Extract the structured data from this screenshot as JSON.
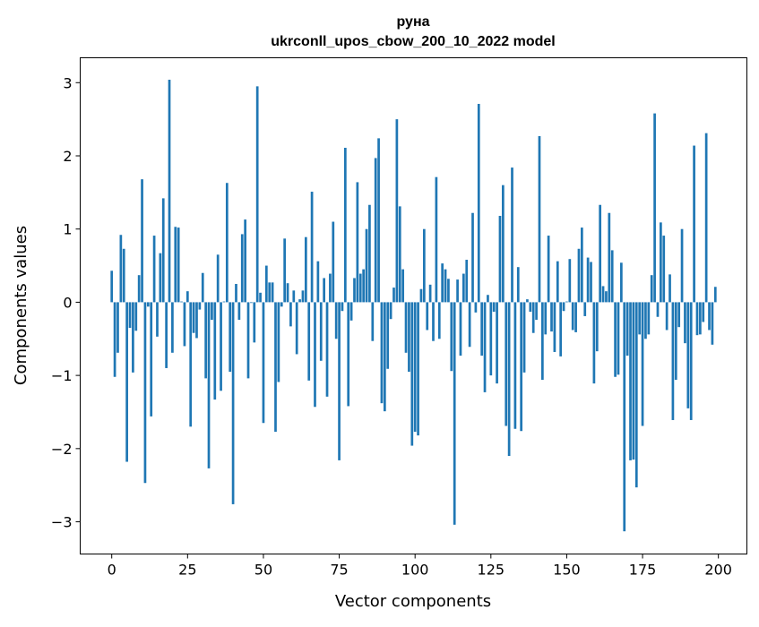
{
  "chart_data": {
    "type": "bar",
    "title_line1": "руна",
    "title_line2": "ukrconll_upos_cbow_200_10_2022 model",
    "xlabel": "Vector components",
    "ylabel": "Components values",
    "xlim": [
      -10.4,
      209.4
    ],
    "ylim": [
      -3.44,
      3.34
    ],
    "xticks": [
      0,
      25,
      50,
      75,
      100,
      125,
      150,
      175,
      200
    ],
    "xtick_labels": [
      "0",
      "25",
      "50",
      "75",
      "100",
      "125",
      "150",
      "175",
      "200"
    ],
    "yticks": [
      -3,
      -2,
      -1,
      0,
      1,
      2,
      3
    ],
    "ytick_labels": [
      "−3",
      "−2",
      "−1",
      "0",
      "1",
      "2",
      "3"
    ],
    "grid": false,
    "bar_color": "#1f77b4",
    "values": [
      0.43,
      -1.02,
      -0.69,
      0.92,
      0.73,
      -2.18,
      -0.35,
      -0.96,
      -0.39,
      0.37,
      1.68,
      -2.47,
      -0.06,
      -1.56,
      0.91,
      -0.47,
      0.67,
      1.42,
      -0.9,
      3.04,
      -0.69,
      1.03,
      1.02,
      0.01,
      -0.6,
      0.15,
      -1.7,
      -0.42,
      -0.49,
      -0.1,
      0.4,
      -1.04,
      -2.27,
      -0.24,
      -1.33,
      0.65,
      -1.21,
      0.01,
      1.63,
      -0.95,
      -2.76,
      0.25,
      -0.24,
      0.93,
      1.13,
      -1.04,
      -0.01,
      -0.55,
      2.95,
      0.13,
      -1.65,
      0.5,
      0.27,
      0.27,
      -1.77,
      -1.09,
      -0.06,
      0.87,
      0.26,
      -0.33,
      0.16,
      -0.71,
      0.04,
      0.16,
      0.89,
      -1.07,
      1.51,
      -1.43,
      0.56,
      -0.8,
      0.33,
      -1.29,
      0.39,
      1.1,
      -0.5,
      -2.16,
      -0.12,
      2.11,
      -1.42,
      -0.25,
      0.33,
      1.64,
      0.39,
      0.45,
      1.0,
      1.33,
      -0.53,
      1.97,
      2.24,
      -1.38,
      -1.49,
      -0.91,
      -0.23,
      0.2,
      2.5,
      1.31,
      0.45,
      -0.69,
      -0.95,
      -1.96,
      -1.77,
      -1.82,
      0.18,
      1.0,
      -0.38,
      0.24,
      -0.53,
      1.71,
      -0.5,
      0.53,
      0.45,
      0.32,
      -0.94,
      -3.04,
      0.31,
      -0.73,
      0.39,
      0.58,
      -0.61,
      1.22,
      -0.14,
      2.71,
      -0.73,
      -1.23,
      0.1,
      -1.0,
      -0.13,
      -1.11,
      1.18,
      1.6,
      -1.69,
      -2.1,
      1.84,
      -1.73,
      0.48,
      -1.76,
      -0.96,
      0.04,
      -0.13,
      -0.42,
      -0.24,
      2.27,
      -1.06,
      -0.44,
      0.91,
      -0.4,
      -0.68,
      0.56,
      -0.74,
      -0.12,
      0.01,
      0.59,
      -0.38,
      -0.41,
      0.73,
      1.02,
      -0.19,
      0.61,
      0.55,
      -1.11,
      -0.67,
      1.33,
      0.22,
      0.15,
      1.22,
      0.71,
      -1.02,
      -0.99,
      0.54,
      -3.13,
      -0.73,
      -2.16,
      -2.15,
      -2.53,
      -0.44,
      -1.69,
      -0.5,
      -0.44,
      0.37,
      2.58,
      -0.2,
      1.09,
      0.91,
      -0.38,
      0.38,
      -1.61,
      -1.06,
      -0.34,
      1.0,
      -0.56,
      -1.45,
      -1.61,
      2.14,
      -0.45,
      -0.44,
      -0.27,
      2.31,
      -0.38,
      -0.58,
      0.21
    ]
  }
}
